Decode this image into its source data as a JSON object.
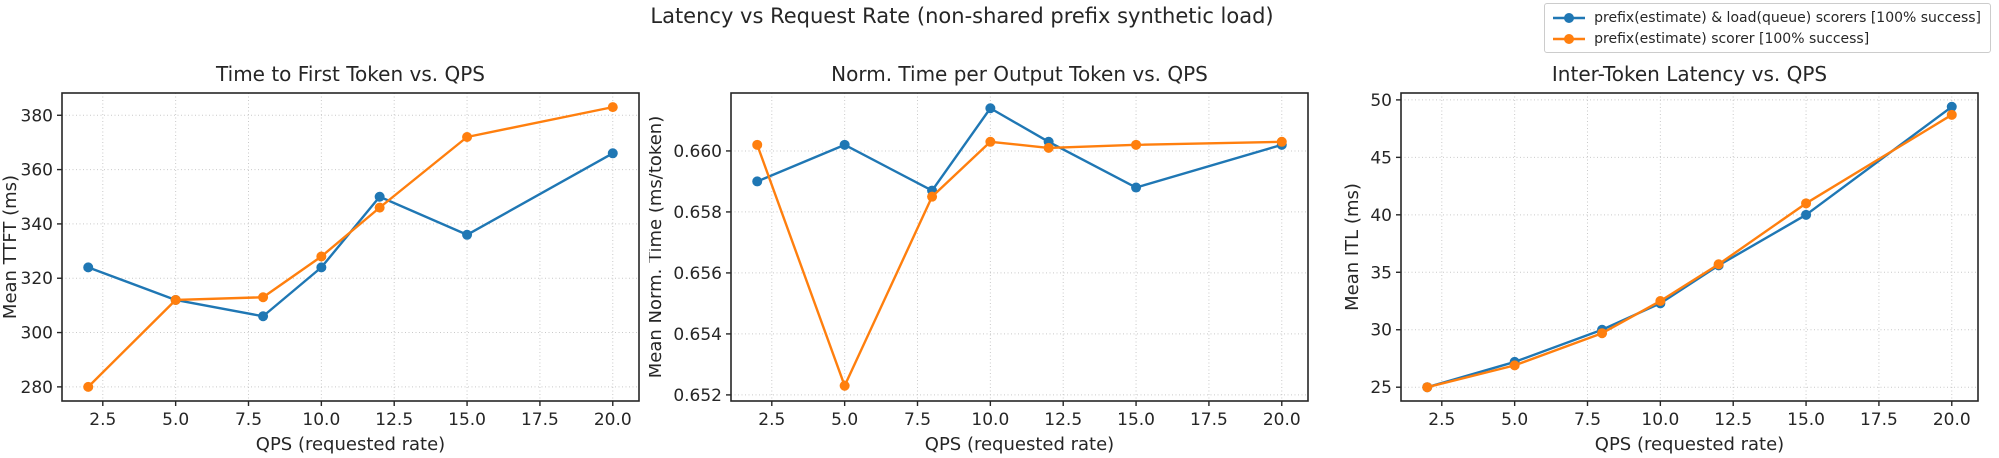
{
  "figure_title": "Latency vs Request Rate (non-shared prefix synthetic load)",
  "colors": {
    "series_blue": "#1f77b4",
    "series_orange": "#ff7f0e",
    "grid": "#c9c9c9",
    "spine": "#262626",
    "text": "#262626",
    "legend_border": "#cccccc"
  },
  "legend": {
    "position": "top-right",
    "items": [
      {
        "label": "prefix(estimate) & load(queue) scorers [100% success]",
        "color": "#1f77b4",
        "marker": "circle-on-line"
      },
      {
        "label": "prefix(estimate) scorer [100% success]",
        "color": "#ff7f0e",
        "marker": "circle-on-line"
      }
    ]
  },
  "chart_data": [
    {
      "type": "line",
      "title": "Time to First Token vs. QPS",
      "xlabel": "QPS (requested rate)",
      "ylabel": "Mean TTFT (ms)",
      "grid": true,
      "x": [
        2,
        5,
        8,
        10,
        12,
        15,
        20
      ],
      "xlim": [
        1.1,
        20.9
      ],
      "ylim": [
        274.8,
        388.2
      ],
      "xticks": [
        2.5,
        5.0,
        7.5,
        10.0,
        12.5,
        15.0,
        17.5,
        20.0
      ],
      "xtick_labels": [
        "2.5",
        "5.0",
        "7.5",
        "10.0",
        "12.5",
        "15.0",
        "17.5",
        "20.0"
      ],
      "yticks": [
        280,
        300,
        320,
        340,
        360,
        380
      ],
      "ytick_labels": [
        "280",
        "300",
        "320",
        "340",
        "360",
        "380"
      ],
      "series": [
        {
          "name": "prefix(estimate) & load(queue) scorers [100% success]",
          "color": "#1f77b4",
          "values": [
            324,
            312,
            306,
            324,
            350,
            336,
            366
          ]
        },
        {
          "name": "prefix(estimate) scorer [100% success]",
          "color": "#ff7f0e",
          "values": [
            280,
            312,
            313,
            328,
            346,
            372,
            383
          ]
        }
      ]
    },
    {
      "type": "line",
      "title": "Norm. Time per Output Token vs. QPS",
      "xlabel": "QPS (requested rate)",
      "ylabel": "Mean Norm. Time (ms/token)",
      "grid": true,
      "x": [
        2,
        5,
        8,
        10,
        12,
        15,
        20
      ],
      "xlim": [
        1.1,
        20.9
      ],
      "ylim": [
        0.6518,
        0.6619
      ],
      "xticks": [
        2.5,
        5.0,
        7.5,
        10.0,
        12.5,
        15.0,
        17.5,
        20.0
      ],
      "xtick_labels": [
        "2.5",
        "5.0",
        "7.5",
        "10.0",
        "12.5",
        "15.0",
        "17.5",
        "20.0"
      ],
      "yticks": [
        0.652,
        0.654,
        0.656,
        0.658,
        0.66
      ],
      "ytick_labels": [
        "0.652",
        "0.654",
        "0.656",
        "0.658",
        "0.660"
      ],
      "series": [
        {
          "name": "prefix(estimate) & load(queue) scorers [100% success]",
          "color": "#1f77b4",
          "values": [
            0.659,
            0.6602,
            0.6587,
            0.6614,
            0.6603,
            0.6588,
            0.6602
          ]
        },
        {
          "name": "prefix(estimate) scorer [100% success]",
          "color": "#ff7f0e",
          "values": [
            0.6602,
            0.6523,
            0.6585,
            0.6603,
            0.6601,
            0.6602,
            0.6603
          ]
        }
      ]
    },
    {
      "type": "line",
      "title": "Inter-Token Latency vs. QPS",
      "xlabel": "QPS (requested rate)",
      "ylabel": "Mean ITL (ms)",
      "grid": true,
      "x": [
        2,
        5,
        8,
        10,
        12,
        15,
        20
      ],
      "xlim": [
        1.1,
        20.9
      ],
      "ylim": [
        23.8,
        50.6
      ],
      "xticks": [
        2.5,
        5.0,
        7.5,
        10.0,
        12.5,
        15.0,
        17.5,
        20.0
      ],
      "xtick_labels": [
        "2.5",
        "5.0",
        "7.5",
        "10.0",
        "12.5",
        "15.0",
        "17.5",
        "20.0"
      ],
      "yticks": [
        25,
        30,
        35,
        40,
        45,
        50
      ],
      "ytick_labels": [
        "25",
        "30",
        "35",
        "40",
        "45",
        "50"
      ],
      "series": [
        {
          "name": "prefix(estimate) & load(queue) scorers [100% success]",
          "color": "#1f77b4",
          "values": [
            25.0,
            27.2,
            30.0,
            32.3,
            35.6,
            40.0,
            49.4
          ]
        },
        {
          "name": "prefix(estimate) scorer [100% success]",
          "color": "#ff7f0e",
          "values": [
            25.0,
            26.9,
            29.7,
            32.5,
            35.7,
            41.0,
            48.7
          ]
        }
      ]
    }
  ]
}
